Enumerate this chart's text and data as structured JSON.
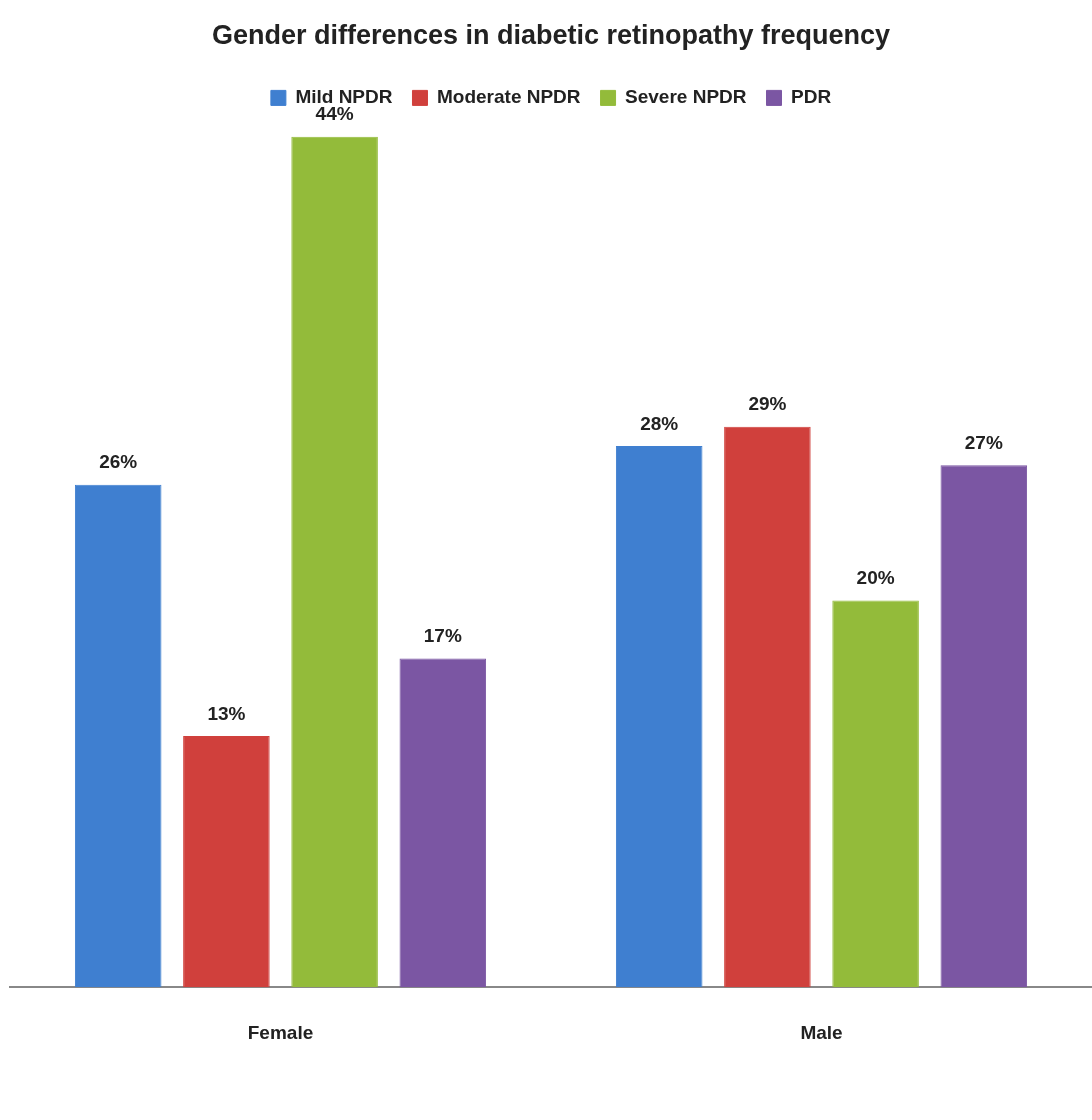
{
  "chart_data": {
    "type": "bar",
    "title": "Gender differences in diabetic retinopathy frequency",
    "categories": [
      "Female",
      "Male"
    ],
    "legend": "top",
    "grid": false,
    "tick_labels": "x",
    "series": [
      {
        "name": "Mild NPDR",
        "color": "#3f7fd0",
        "values": [
          26,
          28
        ],
        "value_labels": [
          "26%",
          "28%"
        ]
      },
      {
        "name": "Moderate NPDR",
        "color": "#d0403c",
        "values": [
          13,
          29
        ],
        "value_labels": [
          "13%",
          "29%"
        ]
      },
      {
        "name": "Severe NPDR",
        "color": "#93bb3a",
        "values": [
          44,
          20
        ],
        "value_labels": [
          "44%",
          "20%"
        ]
      },
      {
        "name": "PDR",
        "color": "#7b56a3",
        "values": [
          17,
          27
        ],
        "value_labels": [
          "17%",
          "27%"
        ]
      }
    ]
  }
}
